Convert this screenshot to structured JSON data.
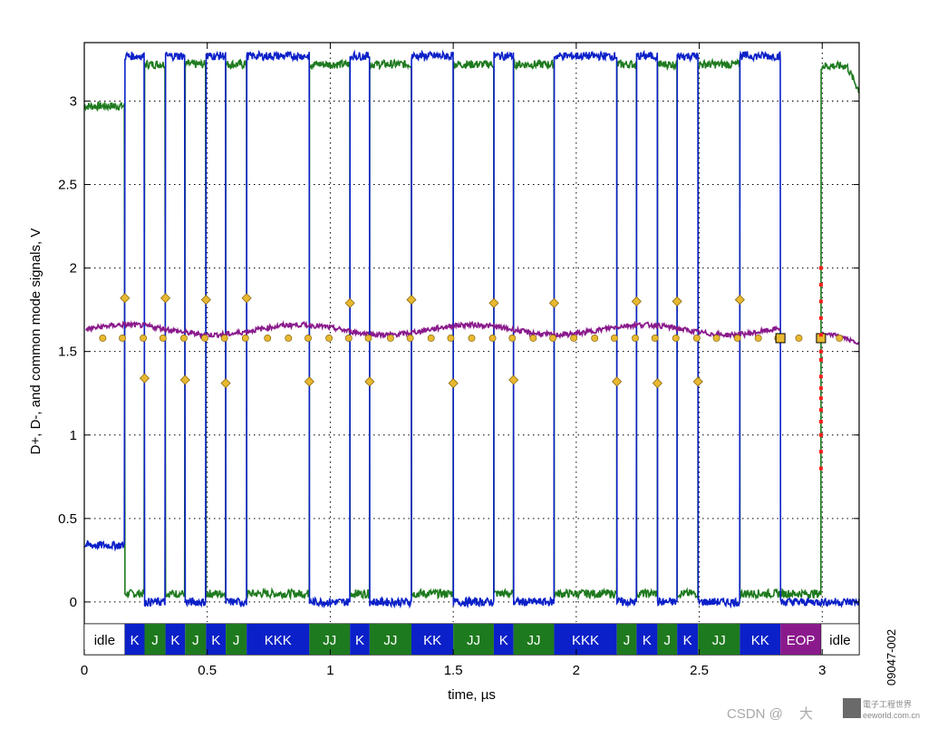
{
  "chart_data": {
    "type": "line",
    "title": "",
    "xlabel": "time, µs",
    "ylabel": "D+, D-, and common mode signals, V",
    "xlim": [
      0,
      3.15
    ],
    "ylim": [
      -0.12,
      3.35
    ],
    "grid": true,
    "xticks": [
      0,
      0.5,
      1,
      1.5,
      2,
      2.5,
      3
    ],
    "xtick_labels": [
      "0",
      "0.5",
      "1",
      "1.5",
      "2",
      "2.5",
      "3"
    ],
    "yticks": [
      0,
      0.5,
      1,
      1.5,
      2,
      2.5,
      3
    ],
    "ytick_labels": [
      "0",
      "0.5",
      "1",
      "1.5",
      "2",
      "2.5",
      "3"
    ],
    "colors": {
      "d_plus": "#0b20c8",
      "d_minus": "#1e7a1e",
      "common_mode": "#8a1a8c",
      "marker": "#e8b830",
      "eop_marker": "#ff2020",
      "state_K": "#0b20c8",
      "state_J": "#1e7a1e",
      "state_EOP": "#8a1a8c",
      "state_idle": "#ffffff"
    },
    "transitions": [
      0.165,
      0.245,
      0.33,
      0.41,
      0.495,
      0.575,
      0.66,
      0.915,
      1.08,
      1.16,
      1.33,
      1.5,
      1.665,
      1.745,
      1.91,
      2.165,
      2.245,
      2.33,
      2.41,
      2.495,
      2.665,
      2.83
    ],
    "states": [
      {
        "start": 0.0,
        "end": 0.165,
        "label": "idle",
        "kind": "idle"
      },
      {
        "start": 0.165,
        "end": 0.245,
        "label": "K",
        "kind": "K"
      },
      {
        "start": 0.245,
        "end": 0.33,
        "label": "J",
        "kind": "J"
      },
      {
        "start": 0.33,
        "end": 0.41,
        "label": "K",
        "kind": "K"
      },
      {
        "start": 0.41,
        "end": 0.495,
        "label": "J",
        "kind": "J"
      },
      {
        "start": 0.495,
        "end": 0.575,
        "label": "K",
        "kind": "K"
      },
      {
        "start": 0.575,
        "end": 0.66,
        "label": "J",
        "kind": "J"
      },
      {
        "start": 0.66,
        "end": 0.915,
        "label": "KKK",
        "kind": "K"
      },
      {
        "start": 0.915,
        "end": 1.08,
        "label": "JJ",
        "kind": "J"
      },
      {
        "start": 1.08,
        "end": 1.16,
        "label": "K",
        "kind": "K"
      },
      {
        "start": 1.16,
        "end": 1.33,
        "label": "JJ",
        "kind": "J"
      },
      {
        "start": 1.33,
        "end": 1.5,
        "label": "KK",
        "kind": "K"
      },
      {
        "start": 1.5,
        "end": 1.665,
        "label": "JJ",
        "kind": "J"
      },
      {
        "start": 1.665,
        "end": 1.745,
        "label": "K",
        "kind": "K"
      },
      {
        "start": 1.745,
        "end": 1.91,
        "label": "JJ",
        "kind": "J"
      },
      {
        "start": 1.91,
        "end": 2.165,
        "label": "KKK",
        "kind": "K"
      },
      {
        "start": 2.165,
        "end": 2.245,
        "label": "J",
        "kind": "J"
      },
      {
        "start": 2.245,
        "end": 2.33,
        "label": "K",
        "kind": "K"
      },
      {
        "start": 2.33,
        "end": 2.41,
        "label": "J",
        "kind": "J"
      },
      {
        "start": 2.41,
        "end": 2.495,
        "label": "K",
        "kind": "K"
      },
      {
        "start": 2.495,
        "end": 2.665,
        "label": "JJ",
        "kind": "J"
      },
      {
        "start": 2.665,
        "end": 2.83,
        "label": "KK",
        "kind": "K"
      },
      {
        "start": 2.83,
        "end": 2.995,
        "label": "EOP",
        "kind": "EOP"
      },
      {
        "start": 2.995,
        "end": 3.15,
        "label": "idle",
        "kind": "idle"
      }
    ],
    "series": [
      {
        "key": "d_plus",
        "levels": {
          "high": 3.27,
          "low": 0.0
        },
        "idle_start": 0.34,
        "idle_end": 0.0
      },
      {
        "key": "d_minus",
        "levels": {
          "high": 3.22,
          "low": 0.05
        },
        "idle_start": 2.97,
        "idle_end": 3.21
      },
      {
        "key": "common_mode",
        "levels": {
          "mean": 1.63
        },
        "end_value": 1.55
      }
    ],
    "cm_bump_points": [
      {
        "x": 0.165,
        "y": 1.82
      },
      {
        "x": 0.245,
        "y": 1.34
      },
      {
        "x": 0.33,
        "y": 1.82
      },
      {
        "x": 0.41,
        "y": 1.33
      },
      {
        "x": 0.495,
        "y": 1.81
      },
      {
        "x": 0.575,
        "y": 1.31
      },
      {
        "x": 0.66,
        "y": 1.82
      },
      {
        "x": 0.915,
        "y": 1.32
      },
      {
        "x": 1.08,
        "y": 1.79
      },
      {
        "x": 1.16,
        "y": 1.32
      },
      {
        "x": 1.33,
        "y": 1.81
      },
      {
        "x": 1.5,
        "y": 1.31
      },
      {
        "x": 1.665,
        "y": 1.79
      },
      {
        "x": 1.745,
        "y": 1.33
      },
      {
        "x": 1.91,
        "y": 1.79
      },
      {
        "x": 2.165,
        "y": 1.32
      },
      {
        "x": 2.245,
        "y": 1.8
      },
      {
        "x": 2.33,
        "y": 1.31
      },
      {
        "x": 2.41,
        "y": 1.8
      },
      {
        "x": 2.495,
        "y": 1.32
      },
      {
        "x": 2.665,
        "y": 1.81
      }
    ],
    "bit_sample_points": {
      "y": 1.58,
      "x": [
        0.075,
        0.155,
        0.24,
        0.32,
        0.405,
        0.49,
        0.57,
        0.655,
        0.745,
        0.83,
        0.91,
        0.995,
        1.075,
        1.155,
        1.245,
        1.325,
        1.41,
        1.49,
        1.575,
        1.66,
        1.74,
        1.825,
        1.905,
        1.99,
        2.075,
        2.155,
        2.24,
        2.32,
        2.405,
        2.49,
        2.57,
        2.655,
        2.74,
        2.82,
        2.905,
        2.99,
        3.07
      ]
    },
    "eop_square_points": [
      {
        "x": 2.83,
        "y": 1.58
      },
      {
        "x": 2.995,
        "y": 1.58
      }
    ],
    "eop_vertical_markers": {
      "x": 2.995,
      "y": [
        2.0,
        1.9,
        1.8,
        1.7,
        1.6,
        1.5,
        1.45,
        1.35,
        1.28,
        1.22,
        1.15,
        1.08,
        1.0,
        0.9,
        0.8
      ]
    }
  },
  "figure_id": "09047-002",
  "watermark": {
    "prefix": "CSDN @",
    "name": "大",
    "logo_main": "電子工程世界",
    "logo_sub": "eeworld.com.cn"
  }
}
